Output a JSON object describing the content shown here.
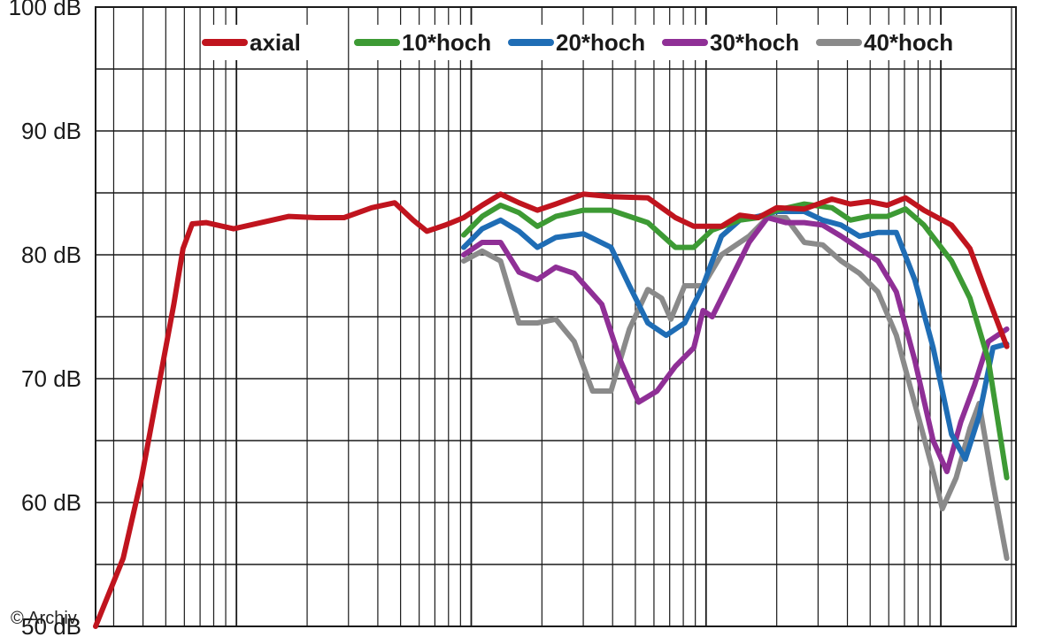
{
  "chart_data": {
    "type": "line",
    "title": "",
    "xlabel": "",
    "ylabel": "",
    "ylim": [
      50,
      100
    ],
    "y_ticks": [
      "100 dB",
      "90 dB",
      "80 dB",
      "70 dB",
      "60 dB",
      "50 dB"
    ],
    "x_scale": "log",
    "grid": true,
    "legend_position": "top",
    "credit": "© Archiv",
    "series": [
      {
        "name": "axial",
        "color": "#c0141e",
        "points": [
          [
            0.0,
            50.0
          ],
          [
            0.03,
            55.5
          ],
          [
            0.05,
            62.0
          ],
          [
            0.07,
            70.0
          ],
          [
            0.085,
            76.0
          ],
          [
            0.095,
            80.5
          ],
          [
            0.105,
            82.5
          ],
          [
            0.12,
            82.6
          ],
          [
            0.15,
            82.1
          ],
          [
            0.18,
            82.6
          ],
          [
            0.21,
            83.1
          ],
          [
            0.24,
            83.0
          ],
          [
            0.27,
            83.0
          ],
          [
            0.3,
            83.8
          ],
          [
            0.325,
            84.2
          ],
          [
            0.345,
            82.8
          ],
          [
            0.36,
            81.9
          ],
          [
            0.38,
            82.4
          ],
          [
            0.4,
            83.0
          ],
          [
            0.42,
            84.0
          ],
          [
            0.44,
            84.9
          ],
          [
            0.46,
            84.2
          ],
          [
            0.48,
            83.6
          ],
          [
            0.5,
            84.1
          ],
          [
            0.53,
            84.9
          ],
          [
            0.56,
            84.7
          ],
          [
            0.6,
            84.6
          ],
          [
            0.63,
            83.0
          ],
          [
            0.65,
            82.3
          ],
          [
            0.68,
            82.3
          ],
          [
            0.7,
            83.2
          ],
          [
            0.72,
            83.0
          ],
          [
            0.74,
            83.8
          ],
          [
            0.77,
            83.7
          ],
          [
            0.8,
            84.5
          ],
          [
            0.82,
            84.1
          ],
          [
            0.84,
            84.3
          ],
          [
            0.86,
            84.0
          ],
          [
            0.88,
            84.6
          ],
          [
            0.9,
            83.6
          ],
          [
            0.93,
            82.4
          ],
          [
            0.95,
            80.5
          ],
          [
            0.97,
            76.5
          ],
          [
            0.99,
            72.6
          ]
        ]
      },
      {
        "name": "10*hoch",
        "color": "#3d9a34",
        "points": [
          [
            0.4,
            81.6
          ],
          [
            0.42,
            83.1
          ],
          [
            0.44,
            84.0
          ],
          [
            0.46,
            83.4
          ],
          [
            0.48,
            82.3
          ],
          [
            0.5,
            83.1
          ],
          [
            0.53,
            83.6
          ],
          [
            0.56,
            83.6
          ],
          [
            0.6,
            82.6
          ],
          [
            0.63,
            80.6
          ],
          [
            0.65,
            80.6
          ],
          [
            0.67,
            82.0
          ],
          [
            0.7,
            82.8
          ],
          [
            0.72,
            83.0
          ],
          [
            0.74,
            83.6
          ],
          [
            0.77,
            84.1
          ],
          [
            0.8,
            83.8
          ],
          [
            0.82,
            82.8
          ],
          [
            0.84,
            83.1
          ],
          [
            0.86,
            83.1
          ],
          [
            0.88,
            83.7
          ],
          [
            0.9,
            82.4
          ],
          [
            0.93,
            79.5
          ],
          [
            0.95,
            76.5
          ],
          [
            0.97,
            71.5
          ],
          [
            0.99,
            62.0
          ]
        ]
      },
      {
        "name": "20*hoch",
        "color": "#1f6db5",
        "points": [
          [
            0.4,
            80.6
          ],
          [
            0.42,
            82.1
          ],
          [
            0.44,
            82.8
          ],
          [
            0.46,
            81.9
          ],
          [
            0.48,
            80.6
          ],
          [
            0.5,
            81.4
          ],
          [
            0.53,
            81.7
          ],
          [
            0.56,
            80.6
          ],
          [
            0.58,
            77.5
          ],
          [
            0.6,
            74.5
          ],
          [
            0.62,
            73.5
          ],
          [
            0.64,
            74.5
          ],
          [
            0.66,
            77.5
          ],
          [
            0.68,
            81.5
          ],
          [
            0.7,
            82.8
          ],
          [
            0.72,
            83.1
          ],
          [
            0.74,
            83.5
          ],
          [
            0.77,
            83.5
          ],
          [
            0.79,
            82.8
          ],
          [
            0.81,
            82.4
          ],
          [
            0.83,
            81.5
          ],
          [
            0.85,
            81.8
          ],
          [
            0.87,
            81.8
          ],
          [
            0.89,
            78.0
          ],
          [
            0.91,
            72.5
          ],
          [
            0.93,
            65.5
          ],
          [
            0.945,
            63.5
          ],
          [
            0.96,
            67.0
          ],
          [
            0.975,
            72.5
          ],
          [
            0.99,
            72.8
          ]
        ]
      },
      {
        "name": "30*hoch",
        "color": "#8f2f96",
        "points": [
          [
            0.4,
            80.0
          ],
          [
            0.42,
            81.0
          ],
          [
            0.44,
            81.0
          ],
          [
            0.46,
            78.6
          ],
          [
            0.48,
            78.0
          ],
          [
            0.5,
            79.0
          ],
          [
            0.52,
            78.5
          ],
          [
            0.55,
            76.0
          ],
          [
            0.57,
            71.5
          ],
          [
            0.59,
            68.1
          ],
          [
            0.61,
            69.0
          ],
          [
            0.63,
            71.0
          ],
          [
            0.65,
            72.5
          ],
          [
            0.66,
            75.5
          ],
          [
            0.67,
            75.0
          ],
          [
            0.69,
            78.0
          ],
          [
            0.71,
            81.0
          ],
          [
            0.73,
            83.0
          ],
          [
            0.75,
            82.6
          ],
          [
            0.77,
            82.6
          ],
          [
            0.79,
            82.4
          ],
          [
            0.81,
            81.5
          ],
          [
            0.83,
            80.5
          ],
          [
            0.85,
            79.5
          ],
          [
            0.87,
            77.0
          ],
          [
            0.89,
            71.5
          ],
          [
            0.91,
            65.0
          ],
          [
            0.925,
            62.5
          ],
          [
            0.94,
            66.5
          ],
          [
            0.955,
            69.5
          ],
          [
            0.97,
            73.0
          ],
          [
            0.99,
            74.0
          ]
        ]
      },
      {
        "name": "40*hoch",
        "color": "#8a8a8a",
        "points": [
          [
            0.4,
            79.5
          ],
          [
            0.42,
            80.3
          ],
          [
            0.44,
            79.5
          ],
          [
            0.46,
            74.5
          ],
          [
            0.48,
            74.5
          ],
          [
            0.5,
            74.8
          ],
          [
            0.52,
            73.0
          ],
          [
            0.54,
            69.0
          ],
          [
            0.56,
            69.0
          ],
          [
            0.58,
            74.0
          ],
          [
            0.6,
            77.2
          ],
          [
            0.615,
            76.5
          ],
          [
            0.625,
            74.8
          ],
          [
            0.64,
            77.5
          ],
          [
            0.66,
            77.5
          ],
          [
            0.68,
            80.0
          ],
          [
            0.71,
            81.5
          ],
          [
            0.73,
            83.0
          ],
          [
            0.75,
            83.0
          ],
          [
            0.77,
            81.0
          ],
          [
            0.79,
            80.8
          ],
          [
            0.81,
            79.5
          ],
          [
            0.83,
            78.5
          ],
          [
            0.85,
            77.0
          ],
          [
            0.87,
            73.5
          ],
          [
            0.89,
            68.0
          ],
          [
            0.91,
            62.5
          ],
          [
            0.92,
            59.5
          ],
          [
            0.935,
            62.0
          ],
          [
            0.95,
            66.0
          ],
          [
            0.96,
            68.0
          ],
          [
            0.975,
            61.5
          ],
          [
            0.99,
            55.5
          ]
        ]
      }
    ]
  }
}
